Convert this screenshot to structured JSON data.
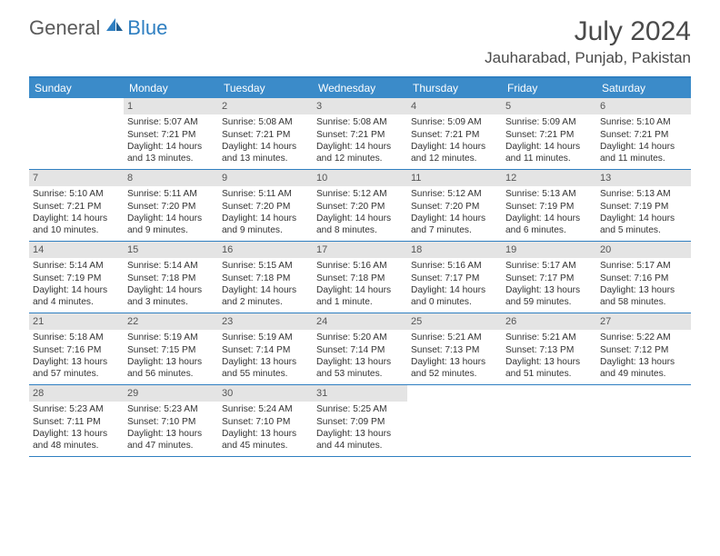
{
  "brand": {
    "general": "General",
    "blue": "Blue"
  },
  "title": "July 2024",
  "location": "Jauharabad, Punjab, Pakistan",
  "colors": {
    "header_bg": "#3b8bc9",
    "accent_border": "#2f7fc1",
    "daynum_bg": "#e4e4e4",
    "text": "#333333",
    "title_text": "#4a4a4a"
  },
  "day_names": [
    "Sunday",
    "Monday",
    "Tuesday",
    "Wednesday",
    "Thursday",
    "Friday",
    "Saturday"
  ],
  "weeks": [
    [
      null,
      {
        "n": "1",
        "sr": "5:07 AM",
        "ss": "7:21 PM",
        "dl": "14 hours and 13 minutes."
      },
      {
        "n": "2",
        "sr": "5:08 AM",
        "ss": "7:21 PM",
        "dl": "14 hours and 13 minutes."
      },
      {
        "n": "3",
        "sr": "5:08 AM",
        "ss": "7:21 PM",
        "dl": "14 hours and 12 minutes."
      },
      {
        "n": "4",
        "sr": "5:09 AM",
        "ss": "7:21 PM",
        "dl": "14 hours and 12 minutes."
      },
      {
        "n": "5",
        "sr": "5:09 AM",
        "ss": "7:21 PM",
        "dl": "14 hours and 11 minutes."
      },
      {
        "n": "6",
        "sr": "5:10 AM",
        "ss": "7:21 PM",
        "dl": "14 hours and 11 minutes."
      }
    ],
    [
      {
        "n": "7",
        "sr": "5:10 AM",
        "ss": "7:21 PM",
        "dl": "14 hours and 10 minutes."
      },
      {
        "n": "8",
        "sr": "5:11 AM",
        "ss": "7:20 PM",
        "dl": "14 hours and 9 minutes."
      },
      {
        "n": "9",
        "sr": "5:11 AM",
        "ss": "7:20 PM",
        "dl": "14 hours and 9 minutes."
      },
      {
        "n": "10",
        "sr": "5:12 AM",
        "ss": "7:20 PM",
        "dl": "14 hours and 8 minutes."
      },
      {
        "n": "11",
        "sr": "5:12 AM",
        "ss": "7:20 PM",
        "dl": "14 hours and 7 minutes."
      },
      {
        "n": "12",
        "sr": "5:13 AM",
        "ss": "7:19 PM",
        "dl": "14 hours and 6 minutes."
      },
      {
        "n": "13",
        "sr": "5:13 AM",
        "ss": "7:19 PM",
        "dl": "14 hours and 5 minutes."
      }
    ],
    [
      {
        "n": "14",
        "sr": "5:14 AM",
        "ss": "7:19 PM",
        "dl": "14 hours and 4 minutes."
      },
      {
        "n": "15",
        "sr": "5:14 AM",
        "ss": "7:18 PM",
        "dl": "14 hours and 3 minutes."
      },
      {
        "n": "16",
        "sr": "5:15 AM",
        "ss": "7:18 PM",
        "dl": "14 hours and 2 minutes."
      },
      {
        "n": "17",
        "sr": "5:16 AM",
        "ss": "7:18 PM",
        "dl": "14 hours and 1 minute."
      },
      {
        "n": "18",
        "sr": "5:16 AM",
        "ss": "7:17 PM",
        "dl": "14 hours and 0 minutes."
      },
      {
        "n": "19",
        "sr": "5:17 AM",
        "ss": "7:17 PM",
        "dl": "13 hours and 59 minutes."
      },
      {
        "n": "20",
        "sr": "5:17 AM",
        "ss": "7:16 PM",
        "dl": "13 hours and 58 minutes."
      }
    ],
    [
      {
        "n": "21",
        "sr": "5:18 AM",
        "ss": "7:16 PM",
        "dl": "13 hours and 57 minutes."
      },
      {
        "n": "22",
        "sr": "5:19 AM",
        "ss": "7:15 PM",
        "dl": "13 hours and 56 minutes."
      },
      {
        "n": "23",
        "sr": "5:19 AM",
        "ss": "7:14 PM",
        "dl": "13 hours and 55 minutes."
      },
      {
        "n": "24",
        "sr": "5:20 AM",
        "ss": "7:14 PM",
        "dl": "13 hours and 53 minutes."
      },
      {
        "n": "25",
        "sr": "5:21 AM",
        "ss": "7:13 PM",
        "dl": "13 hours and 52 minutes."
      },
      {
        "n": "26",
        "sr": "5:21 AM",
        "ss": "7:13 PM",
        "dl": "13 hours and 51 minutes."
      },
      {
        "n": "27",
        "sr": "5:22 AM",
        "ss": "7:12 PM",
        "dl": "13 hours and 49 minutes."
      }
    ],
    [
      {
        "n": "28",
        "sr": "5:23 AM",
        "ss": "7:11 PM",
        "dl": "13 hours and 48 minutes."
      },
      {
        "n": "29",
        "sr": "5:23 AM",
        "ss": "7:10 PM",
        "dl": "13 hours and 47 minutes."
      },
      {
        "n": "30",
        "sr": "5:24 AM",
        "ss": "7:10 PM",
        "dl": "13 hours and 45 minutes."
      },
      {
        "n": "31",
        "sr": "5:25 AM",
        "ss": "7:09 PM",
        "dl": "13 hours and 44 minutes."
      },
      null,
      null,
      null
    ]
  ],
  "labels": {
    "sunrise_prefix": "Sunrise: ",
    "sunset_prefix": "Sunset: ",
    "daylight_prefix": "Daylight: "
  }
}
